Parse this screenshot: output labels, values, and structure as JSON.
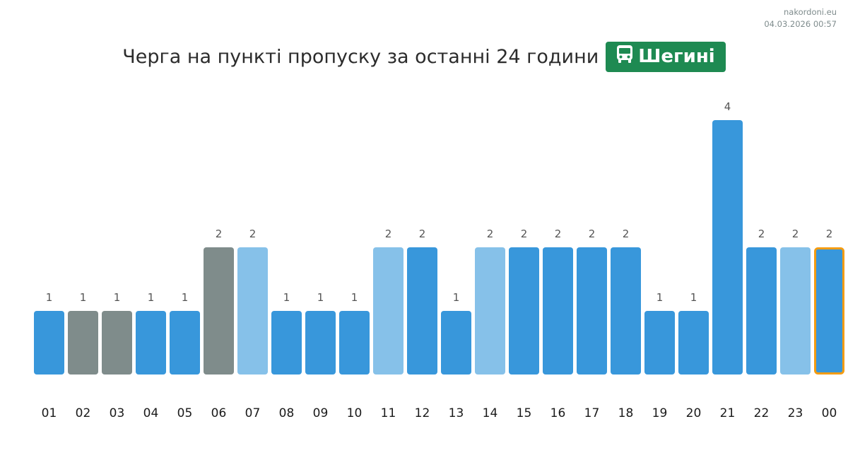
{
  "source": {
    "site": "nakordoni.eu",
    "timestamp": "04.03.2026 00:57"
  },
  "header": {
    "title": "Черга на пункті пропуску за останні 24 години",
    "badge_label": "Шегині",
    "badge_icon": "bus-icon",
    "badge_color": "#1e8a52"
  },
  "colors": {
    "blue": "#3897db",
    "light": "#86c1e9",
    "gray": "#7f8c8b",
    "highlight_border": "#f39c12"
  },
  "chart_data": {
    "type": "bar",
    "title": "Черга на пункті пропуску за останні 24 години",
    "xlabel": "",
    "ylabel": "",
    "ylim": [
      0,
      4
    ],
    "grid": false,
    "categories": [
      "01",
      "02",
      "03",
      "04",
      "05",
      "06",
      "07",
      "08",
      "09",
      "10",
      "11",
      "12",
      "13",
      "14",
      "15",
      "16",
      "17",
      "18",
      "19",
      "20",
      "21",
      "22",
      "23",
      "00"
    ],
    "values": [
      1,
      1,
      1,
      1,
      1,
      2,
      2,
      1,
      1,
      1,
      2,
      2,
      1,
      2,
      2,
      2,
      2,
      2,
      1,
      1,
      4,
      2,
      2,
      2
    ],
    "bar_colors": [
      "blue",
      "gray",
      "gray",
      "blue",
      "blue",
      "gray",
      "light",
      "blue",
      "blue",
      "blue",
      "light",
      "blue",
      "blue",
      "light",
      "blue",
      "blue",
      "blue",
      "blue",
      "blue",
      "blue",
      "blue",
      "blue",
      "light",
      "blue"
    ],
    "highlighted_category": "00"
  }
}
